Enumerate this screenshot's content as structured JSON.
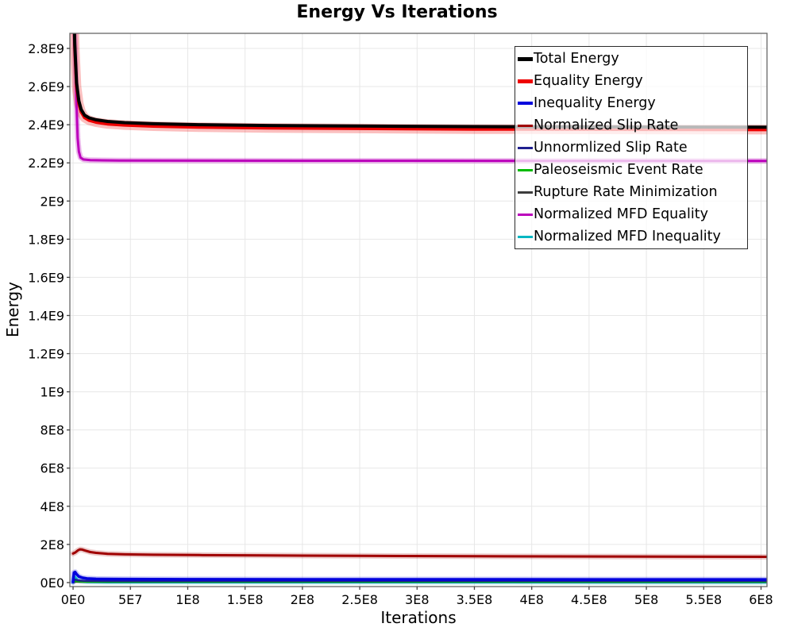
{
  "chart_data": {
    "type": "line",
    "title": "Energy Vs Iterations",
    "xlabel": "Iterations",
    "ylabel": "Energy",
    "xlim": [
      -2800000,
      605200000
    ],
    "ylim": [
      -21000000,
      2879000000
    ],
    "grid": true,
    "legend_position": "top-right",
    "x_ticks": [
      {
        "value": 0,
        "label": "0E0"
      },
      {
        "value": 50000000,
        "label": "5E7"
      },
      {
        "value": 100000000,
        "label": "1E8"
      },
      {
        "value": 150000000,
        "label": "1.5E8"
      },
      {
        "value": 200000000,
        "label": "2E8"
      },
      {
        "value": 250000000,
        "label": "2.5E8"
      },
      {
        "value": 300000000,
        "label": "3E8"
      },
      {
        "value": 350000000,
        "label": "3.5E8"
      },
      {
        "value": 400000000,
        "label": "4E8"
      },
      {
        "value": 450000000,
        "label": "4.5E8"
      },
      {
        "value": 500000000,
        "label": "5E8"
      },
      {
        "value": 550000000,
        "label": "5.5E8"
      },
      {
        "value": 600000000,
        "label": "6E8"
      }
    ],
    "y_ticks": [
      {
        "value": 0,
        "label": "0E0"
      },
      {
        "value": 200000000,
        "label": "2E8"
      },
      {
        "value": 400000000,
        "label": "4E8"
      },
      {
        "value": 600000000,
        "label": "6E8"
      },
      {
        "value": 800000000,
        "label": "8E8"
      },
      {
        "value": 1000000000,
        "label": "1E9"
      },
      {
        "value": 1200000000,
        "label": "1.2E9"
      },
      {
        "value": 1400000000,
        "label": "1.4E9"
      },
      {
        "value": 1600000000,
        "label": "1.6E9"
      },
      {
        "value": 1800000000,
        "label": "1.8E9"
      },
      {
        "value": 2000000000,
        "label": "2E9"
      },
      {
        "value": 2200000000,
        "label": "2.2E9"
      },
      {
        "value": 2400000000,
        "label": "2.4E9"
      },
      {
        "value": 2600000000,
        "label": "2.6E9"
      },
      {
        "value": 2800000000,
        "label": "2.8E9"
      }
    ],
    "series": [
      {
        "name": "Total Energy",
        "color": "#000000",
        "width": 4,
        "legend_swatch_width": 5,
        "points": [
          [
            0,
            3200000000
          ],
          [
            1500000,
            2820000000
          ],
          [
            3000000,
            2620000000
          ],
          [
            5000000,
            2525000000
          ],
          [
            7000000,
            2480000000
          ],
          [
            10000000,
            2450000000
          ],
          [
            14000000,
            2436000000
          ],
          [
            20000000,
            2426000000
          ],
          [
            30000000,
            2417000000
          ],
          [
            45000000,
            2411000000
          ],
          [
            70000000,
            2405000000
          ],
          [
            110000000,
            2400000000
          ],
          [
            170000000,
            2396000000
          ],
          [
            250000000,
            2393000000
          ],
          [
            350000000,
            2390000000
          ],
          [
            500000000,
            2388000000
          ],
          [
            605000000,
            2387000000
          ]
        ]
      },
      {
        "name": "Equality Energy",
        "color": "#ee0000",
        "width": 4,
        "legend_swatch_width": 5,
        "band": {
          "width": 12,
          "opacity": 0.25
        },
        "points": [
          [
            0,
            3200000000
          ],
          [
            1500000,
            2800000000
          ],
          [
            3000000,
            2600000000
          ],
          [
            5000000,
            2510000000
          ],
          [
            7000000,
            2467000000
          ],
          [
            10000000,
            2437000000
          ],
          [
            14000000,
            2423000000
          ],
          [
            20000000,
            2413000000
          ],
          [
            30000000,
            2404000000
          ],
          [
            45000000,
            2398000000
          ],
          [
            70000000,
            2392000000
          ],
          [
            110000000,
            2387000000
          ],
          [
            170000000,
            2383000000
          ],
          [
            250000000,
            2380000000
          ],
          [
            350000000,
            2377000000
          ],
          [
            500000000,
            2375000000
          ],
          [
            605000000,
            2374000000
          ]
        ]
      },
      {
        "name": "Inequality Energy",
        "color": "#0000dd",
        "width": 3.5,
        "legend_swatch_width": 4,
        "band": {
          "width": 7,
          "opacity": 0.22
        },
        "points": [
          [
            0,
            3000000
          ],
          [
            800000,
            52000000
          ],
          [
            1800000,
            55000000
          ],
          [
            3000000,
            44000000
          ],
          [
            5000000,
            32000000
          ],
          [
            8000000,
            25000000
          ],
          [
            12000000,
            21000000
          ],
          [
            20000000,
            19000000
          ],
          [
            40000000,
            18000000
          ],
          [
            100000000,
            17000000
          ],
          [
            200000000,
            16500000
          ],
          [
            605000000,
            16000000
          ]
        ]
      },
      {
        "name": "Normalized Slip Rate",
        "color": "#a00000",
        "width": 3,
        "legend_swatch_width": 3,
        "band": {
          "width": 7,
          "opacity": 0.2
        },
        "points": [
          [
            0,
            152000000
          ],
          [
            2000000,
            158000000
          ],
          [
            4000000,
            168000000
          ],
          [
            6000000,
            174000000
          ],
          [
            8000000,
            173000000
          ],
          [
            11000000,
            167000000
          ],
          [
            15000000,
            160000000
          ],
          [
            20000000,
            156000000
          ],
          [
            30000000,
            151000000
          ],
          [
            45000000,
            148000000
          ],
          [
            70000000,
            146000000
          ],
          [
            110000000,
            144000000
          ],
          [
            170000000,
            142000000
          ],
          [
            250000000,
            140000000
          ],
          [
            350000000,
            138000000
          ],
          [
            470000000,
            136500000
          ],
          [
            605000000,
            135000000
          ]
        ]
      },
      {
        "name": "Unnormlized Slip Rate",
        "color": "#20208f",
        "width": 2.5,
        "legend_swatch_width": 3,
        "points": [
          [
            0,
            2000000
          ],
          [
            1500000,
            16000000
          ],
          [
            4000000,
            12000000
          ],
          [
            10000000,
            9000000
          ],
          [
            50000000,
            8000000
          ],
          [
            605000000,
            8000000
          ]
        ]
      },
      {
        "name": "Paleoseismic Event Rate",
        "color": "#00bb00",
        "width": 2.5,
        "legend_swatch_width": 3,
        "points": [
          [
            0,
            1000000
          ],
          [
            1500000,
            9000000
          ],
          [
            4000000,
            6500000
          ],
          [
            10000000,
            5500000
          ],
          [
            605000000,
            5000000
          ]
        ]
      },
      {
        "name": "Rupture Rate Minimization",
        "color": "#3d3d3d",
        "width": 2.5,
        "legend_swatch_width": 3,
        "points": [
          [
            0,
            500000
          ],
          [
            2000000,
            4500000
          ],
          [
            6000000,
            3800000
          ],
          [
            605000000,
            3500000
          ]
        ]
      },
      {
        "name": "Normalized MFD Equality",
        "color": "#bb00bb",
        "width": 3,
        "legend_swatch_width": 3,
        "band": {
          "width": 7,
          "opacity": 0.28
        },
        "points": [
          [
            0,
            3200000000
          ],
          [
            1000000,
            3000000000
          ],
          [
            2000000,
            2750000000
          ],
          [
            3000000,
            2500000000
          ],
          [
            4000000,
            2330000000
          ],
          [
            5000000,
            2260000000
          ],
          [
            6500000,
            2228000000
          ],
          [
            9000000,
            2218000000
          ],
          [
            15000000,
            2214000000
          ],
          [
            40000000,
            2212000000
          ],
          [
            605000000,
            2210000000
          ]
        ]
      },
      {
        "name": "Normalized MFD Inequality",
        "color": "#00b6c2",
        "width": 3,
        "legend_swatch_width": 3,
        "band": {
          "width": 6,
          "opacity": 0.25
        },
        "points": [
          [
            0,
            2000000
          ],
          [
            1000000,
            32000000
          ],
          [
            2500000,
            22000000
          ],
          [
            4000000,
            12000000
          ],
          [
            7000000,
            6000000
          ],
          [
            12000000,
            3500000
          ],
          [
            30000000,
            2000000
          ],
          [
            605000000,
            1500000
          ]
        ]
      }
    ]
  }
}
